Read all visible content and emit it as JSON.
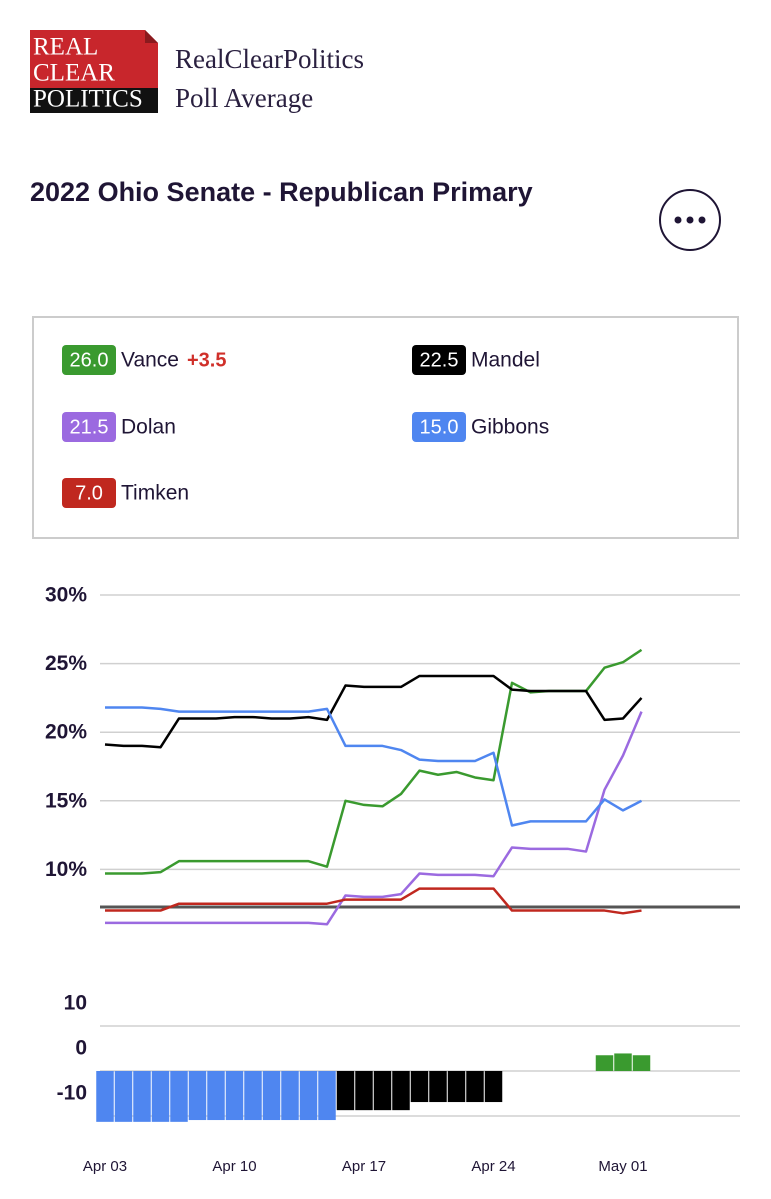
{
  "header": {
    "logo": [
      "REAL",
      "CLEAR",
      "POLITICS"
    ],
    "site": "RealClearPolitics",
    "subtitle": "Poll Average"
  },
  "chart_data": [
    {
      "type": "line",
      "title": "2022 Ohio Senate - Republican Primary",
      "categories": [
        "Apr 03",
        null,
        null,
        null,
        null,
        null,
        null,
        "Apr 10",
        null,
        null,
        null,
        null,
        null,
        null,
        "Apr 17",
        null,
        null,
        null,
        null,
        null,
        null,
        "Apr 24",
        null,
        null,
        null,
        null,
        null,
        null,
        "May 01",
        null
      ],
      "ylim": [
        5.5,
        30
      ],
      "yticks": [
        {
          "value": 30,
          "label": "30%"
        },
        {
          "value": 25,
          "label": "25%"
        },
        {
          "value": 20,
          "label": "20%"
        },
        {
          "value": 15,
          "label": "15%"
        },
        {
          "value": 10,
          "label": "10%"
        }
      ],
      "grid": true,
      "series": [
        {
          "name": "Vance",
          "color": "#3a9a2f",
          "badge": "26.0",
          "change": "+3.5",
          "values": [
            9.7,
            9.7,
            9.7,
            9.8,
            10.6,
            10.6,
            10.6,
            10.6,
            10.6,
            10.6,
            10.6,
            10.6,
            10.2,
            15.0,
            14.7,
            14.6,
            15.5,
            17.2,
            16.9,
            17.1,
            16.7,
            16.5,
            23.6,
            22.9,
            23.0,
            23.0,
            23.0,
            24.7,
            25.1,
            26.0
          ]
        },
        {
          "name": "Mandel",
          "color": "#000000",
          "badge": "22.5",
          "values": [
            19.1,
            19.0,
            19.0,
            18.9,
            21.0,
            21.0,
            21.0,
            21.1,
            21.1,
            21.0,
            21.0,
            21.1,
            20.9,
            23.4,
            23.3,
            23.3,
            23.3,
            24.1,
            24.1,
            24.1,
            24.1,
            24.1,
            23.1,
            23.0,
            23.0,
            23.0,
            23.0,
            20.9,
            21.0,
            22.5
          ]
        },
        {
          "name": "Dolan",
          "color": "#9b6ae0",
          "badge": "21.5",
          "values": [
            6.1,
            6.1,
            6.1,
            6.1,
            6.1,
            6.1,
            6.1,
            6.1,
            6.1,
            6.1,
            6.1,
            6.1,
            6.0,
            8.1,
            8.0,
            8.0,
            8.2,
            9.7,
            9.6,
            9.6,
            9.6,
            9.5,
            11.6,
            11.5,
            11.5,
            11.5,
            11.3,
            15.8,
            18.3,
            21.5
          ]
        },
        {
          "name": "Gibbons",
          "color": "#4f86f0",
          "badge": "15.0",
          "values": [
            21.8,
            21.8,
            21.8,
            21.7,
            21.5,
            21.5,
            21.5,
            21.5,
            21.5,
            21.5,
            21.5,
            21.5,
            21.7,
            19.0,
            19.0,
            19.0,
            18.7,
            18.0,
            17.9,
            17.9,
            17.9,
            18.5,
            13.2,
            13.5,
            13.5,
            13.5,
            13.5,
            15.1,
            14.3,
            15.0
          ]
        },
        {
          "name": "Timken",
          "color": "#c0281f",
          "badge": "7.0",
          "values": [
            7.0,
            7.0,
            7.0,
            7.0,
            7.5,
            7.5,
            7.5,
            7.5,
            7.5,
            7.5,
            7.5,
            7.5,
            7.5,
            7.8,
            7.8,
            7.8,
            7.8,
            8.6,
            8.6,
            8.6,
            8.6,
            8.6,
            7.0,
            7.0,
            7.0,
            7.0,
            7.0,
            7.0,
            6.8,
            7.0
          ]
        }
      ]
    },
    {
      "type": "bar",
      "ylim": [
        -13,
        17
      ],
      "yticks": [
        10,
        0,
        -10
      ],
      "grid": true,
      "series": [
        {
          "color": "#4f86f0",
          "values": [
            -11.3,
            -11.3,
            -11.3,
            -11.3,
            -11.3,
            -10.9,
            -10.9,
            -10.9,
            -10.9,
            -10.9,
            -10.9,
            -10.9,
            -10.9,
            null,
            null,
            null,
            null,
            null,
            null,
            null,
            null,
            null,
            null,
            null,
            null,
            null,
            null,
            null,
            null,
            null
          ]
        },
        {
          "color": "#000000",
          "values": [
            null,
            null,
            null,
            null,
            null,
            null,
            null,
            null,
            null,
            null,
            null,
            null,
            null,
            -8.7,
            -8.7,
            -8.7,
            -8.7,
            -6.9,
            -6.9,
            -6.9,
            -6.9,
            -6.9,
            null,
            null,
            null,
            null,
            null,
            null,
            null,
            null
          ]
        },
        {
          "color": "#3a9a2f",
          "values": [
            null,
            null,
            null,
            null,
            null,
            null,
            null,
            null,
            null,
            null,
            null,
            null,
            null,
            null,
            null,
            null,
            null,
            null,
            null,
            null,
            null,
            null,
            null,
            null,
            null,
            null,
            null,
            3.5,
            3.9,
            3.5
          ]
        }
      ]
    }
  ]
}
